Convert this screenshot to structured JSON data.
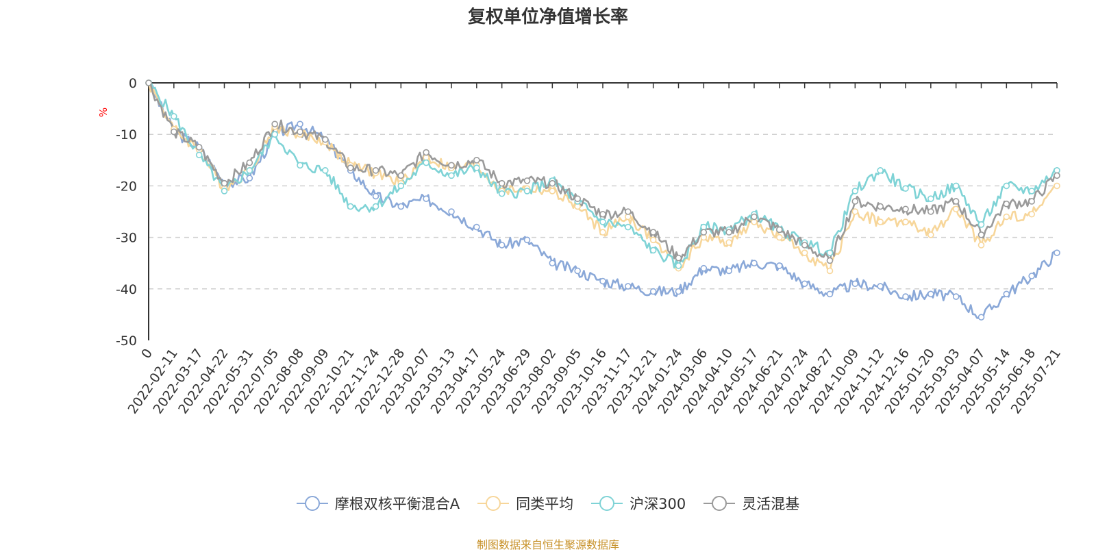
{
  "title": "复权单位净值增长率",
  "source": "制图数据来自恒生聚源数据库",
  "chart_data": {
    "type": "line",
    "title": "复权单位净值增长率",
    "ylabel": "%",
    "ylim": [
      -50,
      0
    ],
    "yticks": [
      0,
      -10,
      -20,
      -30,
      -40,
      -50
    ],
    "grid": true,
    "legend_position": "bottom",
    "x_labels": [
      "0",
      "2022-02-11",
      "2022-03-17",
      "2022-04-22",
      "2022-05-31",
      "2022-07-05",
      "2022-08-08",
      "2022-09-09",
      "2022-10-21",
      "2022-11-24",
      "2022-12-28",
      "2023-02-07",
      "2023-03-13",
      "2023-04-17",
      "2023-05-24",
      "2023-06-29",
      "2023-08-02",
      "2023-09-05",
      "2023-10-16",
      "2023-11-17",
      "2023-12-21",
      "2024-01-24",
      "2024-03-06",
      "2024-04-10",
      "2024-05-17",
      "2024-06-21",
      "2024-07-24",
      "2024-08-27",
      "2024-10-09",
      "2024-11-12",
      "2024-12-16",
      "2025-01-20",
      "2025-03-03",
      "2025-04-07",
      "2025-05-14",
      "2025-06-18",
      "2025-07-21"
    ],
    "series": [
      {
        "name": "摩根双核平衡混合A",
        "color": "#8aa8d8",
        "values": [
          0,
          -9.5,
          -12.5,
          -19.5,
          -18.5,
          -10,
          -8,
          -11,
          -17,
          -22,
          -24,
          -22.5,
          -25,
          -28,
          -31.5,
          -30.5,
          -35,
          -36.5,
          -38.5,
          -39.5,
          -40.5,
          -40.5,
          -36,
          -36.5,
          -35,
          -35.5,
          -39,
          -41,
          -39,
          -39.5,
          -41.5,
          -41,
          -41.5,
          -45.5,
          -41,
          -37.5,
          -33
        ]
      },
      {
        "name": "同类平均",
        "color": "#f7d69a",
        "values": [
          0,
          -9,
          -13,
          -20.5,
          -17,
          -8.5,
          -10,
          -11.5,
          -16,
          -17.5,
          -19.5,
          -14.5,
          -16.5,
          -16,
          -21,
          -20.5,
          -21,
          -24,
          -29,
          -26,
          -30.5,
          -36,
          -30,
          -31,
          -27,
          -30,
          -33,
          -36.5,
          -25,
          -27,
          -27,
          -29.5,
          -24.5,
          -31.5,
          -26,
          -25.5,
          -20
        ]
      },
      {
        "name": "沪深300",
        "color": "#7fd3d6",
        "values": [
          0,
          -6.5,
          -14,
          -21,
          -17,
          -10,
          -16,
          -17,
          -24,
          -24,
          -20,
          -15.5,
          -18,
          -16.5,
          -21.5,
          -21,
          -19,
          -23,
          -27,
          -28,
          -32.5,
          -35.5,
          -28,
          -28.5,
          -25.5,
          -28.5,
          -31,
          -33,
          -21,
          -17,
          -20.5,
          -22.5,
          -20,
          -27.5,
          -20,
          -21,
          -17
        ]
      },
      {
        "name": "灵活混基",
        "color": "#9a9a9a",
        "values": [
          0,
          -9.5,
          -12.5,
          -19.5,
          -15.5,
          -8,
          -9.5,
          -11,
          -16.5,
          -17,
          -18,
          -13.5,
          -16,
          -15,
          -19.5,
          -19,
          -19.5,
          -22.5,
          -25.5,
          -25,
          -29,
          -34,
          -29,
          -29,
          -26,
          -28.5,
          -31.5,
          -34.5,
          -23,
          -24,
          -24.5,
          -25,
          -23,
          -29.5,
          -23.5,
          -23,
          -18
        ]
      }
    ]
  },
  "legend": {
    "items": [
      {
        "label": "摩根双核平衡混合A",
        "color": "#8aa8d8"
      },
      {
        "label": "同类平均",
        "color": "#f7d69a"
      },
      {
        "label": "沪深300",
        "color": "#7fd3d6"
      },
      {
        "label": "灵活混基",
        "color": "#9a9a9a"
      }
    ]
  }
}
